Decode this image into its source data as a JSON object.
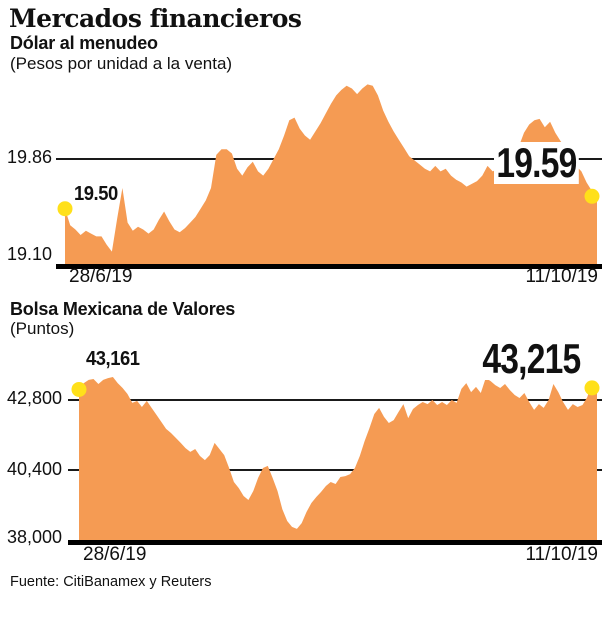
{
  "header": {
    "title": "Mercados financieros"
  },
  "footer": {
    "source": "Fuente: CitiBanamex y Reuters"
  },
  "colors": {
    "area": "#F59B53",
    "dot": "#FFE01A",
    "line": "#1a1a1a",
    "axis": "#000000",
    "watermark": "#E0E0E0"
  },
  "chart_data": [
    {
      "type": "area",
      "title": "Dólar al menudeo",
      "subtitle": "(Pesos por unidad a la venta)",
      "x_start_label": "28/6/19",
      "x_end_label": "11/10/19",
      "start_point_label": "19.50",
      "end_point_label": "19.59",
      "gridlines": [
        {
          "label": "19.86",
          "value": 19.86
        }
      ],
      "baseline": {
        "label": "19.10",
        "value": 19.1
      },
      "ylim": [
        19.1,
        20.45
      ],
      "legend": "none",
      "values": [
        19.5,
        19.38,
        19.35,
        19.31,
        19.34,
        19.32,
        19.3,
        19.3,
        19.24,
        19.19,
        19.43,
        19.65,
        19.4,
        19.34,
        19.37,
        19.35,
        19.32,
        19.35,
        19.42,
        19.48,
        19.41,
        19.35,
        19.33,
        19.36,
        19.4,
        19.44,
        19.5,
        19.56,
        19.65,
        19.89,
        19.93,
        19.93,
        19.9,
        19.79,
        19.74,
        19.8,
        19.84,
        19.77,
        19.74,
        19.79,
        19.86,
        19.93,
        20.03,
        20.14,
        20.16,
        20.08,
        20.03,
        20.0,
        20.06,
        20.12,
        20.19,
        20.26,
        20.32,
        20.36,
        20.39,
        20.37,
        20.33,
        20.37,
        20.4,
        20.39,
        20.32,
        20.21,
        20.13,
        20.06,
        20.0,
        19.94,
        19.88,
        19.85,
        19.82,
        19.79,
        19.77,
        19.81,
        19.77,
        19.79,
        19.74,
        19.71,
        19.69,
        19.66,
        19.68,
        19.7,
        19.74,
        19.81,
        19.77,
        19.79,
        19.77,
        19.83,
        19.88,
        19.95,
        20.05,
        20.11,
        20.14,
        20.15,
        20.09,
        20.13,
        20.05,
        19.99,
        19.94,
        19.87,
        19.81,
        19.77,
        19.69,
        19.63,
        19.59
      ]
    },
    {
      "type": "area",
      "title": "Bolsa Mexicana de Valores",
      "subtitle": "(Puntos)",
      "x_start_label": "28/6/19",
      "x_end_label": "11/10/19",
      "start_point_label": "43,161",
      "end_point_label": "43,215",
      "gridlines": [
        {
          "label": "42,800",
          "value": 42800
        },
        {
          "label": "40,400",
          "value": 40400
        }
      ],
      "baseline": {
        "label": "38,000",
        "value": 38000
      },
      "ylim": [
        38000,
        43600
      ],
      "legend": "none",
      "values": [
        43161,
        43380,
        43490,
        43520,
        43350,
        43490,
        43550,
        43590,
        43380,
        43210,
        43010,
        42700,
        42770,
        42560,
        42770,
        42530,
        42290,
        42050,
        41810,
        41670,
        41500,
        41330,
        41150,
        41020,
        41120,
        40880,
        40740,
        40910,
        41330,
        41120,
        40910,
        40470,
        39990,
        39780,
        39510,
        39370,
        39680,
        40130,
        40470,
        40540,
        40130,
        39680,
        39060,
        38650,
        38450,
        38380,
        38580,
        38960,
        39270,
        39470,
        39650,
        39850,
        39990,
        39920,
        40160,
        40190,
        40260,
        40470,
        40880,
        41390,
        41840,
        42320,
        42530,
        42220,
        42010,
        42110,
        42390,
        42660,
        42180,
        42490,
        42630,
        42730,
        42660,
        42800,
        42630,
        42730,
        42630,
        42800,
        42700,
        43180,
        43380,
        43070,
        43250,
        43040,
        43550,
        43450,
        43310,
        43210,
        43350,
        43140,
        42970,
        42870,
        43040,
        42730,
        42460,
        42660,
        42530,
        42800,
        43350,
        43070,
        42730,
        42460,
        42660,
        42560,
        42630,
        42900,
        43440,
        43215
      ]
    }
  ]
}
